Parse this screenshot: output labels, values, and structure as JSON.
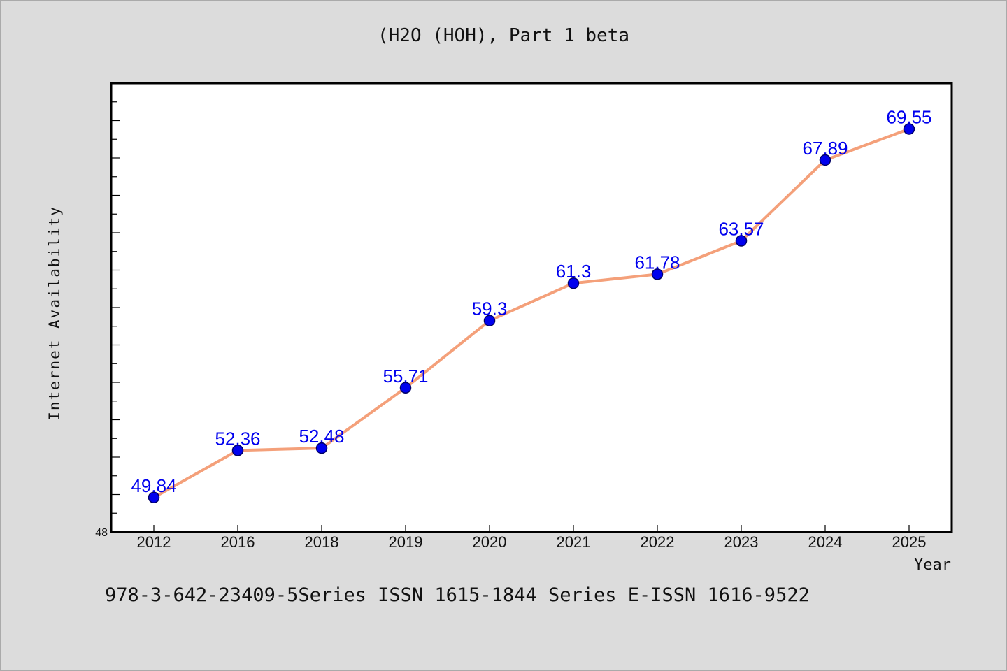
{
  "chart_data": {
    "type": "line",
    "title": "(H2O (HOH), Part 1 beta",
    "xlabel": "Year",
    "ylabel": "Internet Availability",
    "categories": [
      "2012",
      "2016",
      "2018",
      "2019",
      "2020",
      "2021",
      "2022",
      "2023",
      "2024",
      "2025"
    ],
    "series": [
      {
        "values": [
          49.84,
          52.36,
          52.48,
          55.71,
          59.3,
          61.3,
          61.78,
          63.57,
          67.89,
          69.55
        ],
        "labels": [
          "49.84",
          "52.36",
          "52.48",
          "55.71",
          "59.3",
          "61.3",
          "61.78",
          "63.57",
          "67.89",
          "69.55"
        ]
      }
    ],
    "ylim": [
      48,
      72
    ],
    "y_tick_labels": [
      "48"
    ],
    "grid": false,
    "legend": "none",
    "colors": {
      "line": "#f4a07a",
      "marker": "#0000ee",
      "marker_edge": "#000066",
      "data_label": "#0000ee",
      "plot_background": "#ffffff",
      "page_background": "#dcdcdc"
    }
  },
  "footer": {
    "text": "978-3-642-23409-5Series ISSN 1615-1844 Series E-ISSN 1616-9522"
  }
}
